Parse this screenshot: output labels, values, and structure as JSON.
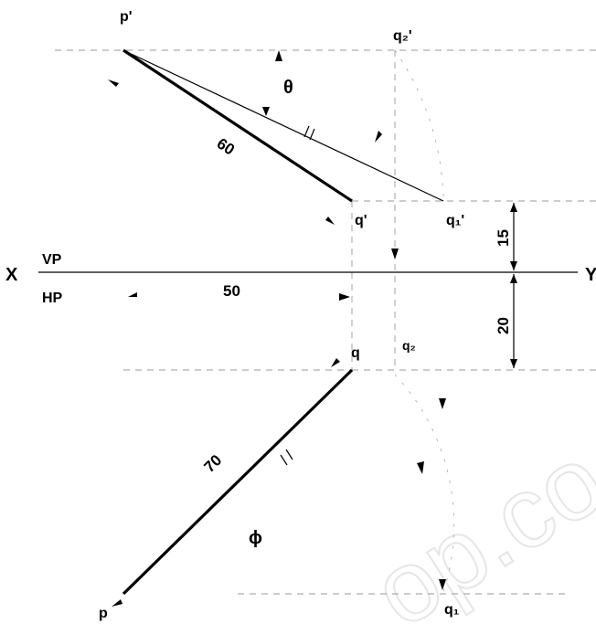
{
  "labels": {
    "p_front": "p'",
    "q_front": "q'",
    "q1_front": "q₁'",
    "q2_front": "q₂'",
    "q_top": "q",
    "q2_top": "q₂",
    "q1_top": "q₁",
    "p_top": "p",
    "x": "X",
    "y": "Y",
    "vp": "VP",
    "hp": "HP",
    "theta": "θ",
    "phi": "ϕ"
  },
  "dimensions": {
    "front_true_length": "60",
    "top_true_length": "70",
    "distance_between_projectors": "50",
    "height_above_hp": "15",
    "depth_in_front_of_vp": "20"
  },
  "watermark": "op.co"
}
